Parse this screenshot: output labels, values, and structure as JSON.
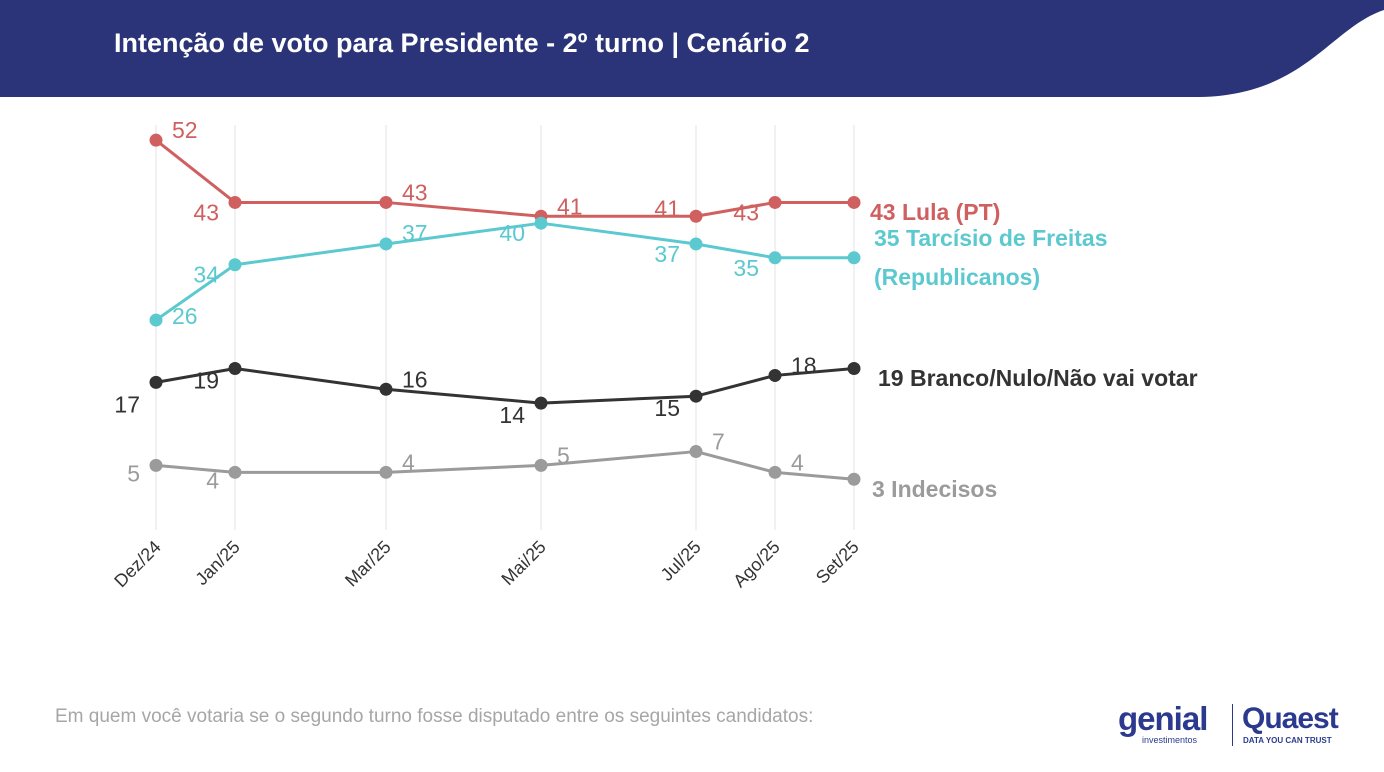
{
  "header": {
    "title": "Intenção de voto para Presidente - 2º turno | Cenário 2",
    "background_color": "#2b3479"
  },
  "footnote": "Em quem você votaria se o segundo turno fosse disputado entre os seguintes candidatos:",
  "logos": {
    "genial_text": "genial",
    "genial_sub": "investimentos",
    "quaest_text": "Quaest",
    "quaest_sub": "DATA YOU CAN TRUST"
  },
  "chart_data": {
    "type": "line",
    "title": "Intenção de voto para Presidente - 2º turno | Cenário 2",
    "categories": [
      "Dez/24",
      "Jan/25",
      "Mar/25",
      "Mai/25",
      "Jul/25",
      "Ago/25",
      "Set/25"
    ],
    "ylim": [
      0,
      55
    ],
    "grid": "vertical",
    "series": [
      {
        "name": "Lula (PT)",
        "end_label": "43 Lula (PT)",
        "color": "#d06060",
        "values": [
          52,
          43,
          43,
          41,
          41,
          43,
          43
        ]
      },
      {
        "name": "Tarcísio de Freitas (Republicanos)",
        "end_label_line1": "35 Tarcísio de Freitas",
        "end_label_line2": "(Republicanos)",
        "color": "#5bc9cf",
        "values": [
          26,
          34,
          37,
          40,
          37,
          35,
          35
        ]
      },
      {
        "name": "Branco/Nulo/Não vai votar",
        "end_label": "19 Branco/Nulo/Não vai votar",
        "color": "#333333",
        "values": [
          17,
          19,
          16,
          14,
          15,
          18,
          19
        ]
      },
      {
        "name": "Indecisos",
        "end_label": "3 Indecisos",
        "color": "#9b9b9b",
        "values": [
          5,
          4,
          4,
          5,
          7,
          4,
          3
        ]
      }
    ]
  }
}
